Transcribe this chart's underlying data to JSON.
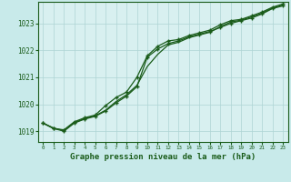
{
  "title": "Graphe pression niveau de la mer (hPa)",
  "background_color": "#c8eaea",
  "plot_bg_color": "#d8f0f0",
  "line_color": "#1a5c1a",
  "grid_color": "#aed4d4",
  "xlim": [
    -0.5,
    23.5
  ],
  "ylim": [
    1018.6,
    1023.8
  ],
  "yticks": [
    1019,
    1020,
    1021,
    1022,
    1023
  ],
  "xticks": [
    0,
    1,
    2,
    3,
    4,
    5,
    6,
    7,
    8,
    9,
    10,
    11,
    12,
    13,
    14,
    15,
    16,
    17,
    18,
    19,
    20,
    21,
    22,
    23
  ],
  "line1_x": [
    0,
    1,
    2,
    3,
    4,
    5,
    6,
    7,
    8,
    9,
    10,
    11,
    12,
    13,
    14,
    15,
    16,
    17,
    18,
    19,
    20,
    21,
    22,
    23
  ],
  "line1_y": [
    1019.3,
    1019.1,
    1019.0,
    1019.3,
    1019.45,
    1019.55,
    1019.75,
    1020.05,
    1020.3,
    1020.65,
    1021.75,
    1022.05,
    1022.25,
    1022.35,
    1022.5,
    1022.6,
    1022.7,
    1022.85,
    1023.0,
    1023.1,
    1023.2,
    1023.35,
    1023.55,
    1023.65
  ],
  "line2_x": [
    0,
    1,
    2,
    3,
    4,
    5,
    6,
    7,
    8,
    9,
    10,
    11,
    12,
    13,
    14,
    15,
    16,
    17,
    18,
    19,
    20,
    21,
    22,
    23
  ],
  "line2_y": [
    1019.3,
    1019.1,
    1019.05,
    1019.35,
    1019.5,
    1019.6,
    1019.95,
    1020.25,
    1020.45,
    1021.0,
    1021.8,
    1022.15,
    1022.35,
    1022.4,
    1022.55,
    1022.65,
    1022.75,
    1022.95,
    1023.1,
    1023.15,
    1023.28,
    1023.42,
    1023.6,
    1023.72
  ],
  "line3_x": [
    0,
    1,
    2,
    3,
    4,
    5,
    6,
    7,
    8,
    9,
    10,
    11,
    12,
    13,
    14,
    15,
    16,
    17,
    18,
    19,
    20,
    21,
    22,
    23
  ],
  "line3_y": [
    1019.3,
    1019.12,
    1019.02,
    1019.32,
    1019.47,
    1019.57,
    1019.78,
    1020.1,
    1020.35,
    1020.7,
    1021.4,
    1021.85,
    1022.2,
    1022.3,
    1022.47,
    1022.57,
    1022.67,
    1022.88,
    1023.05,
    1023.12,
    1023.24,
    1023.38,
    1023.57,
    1023.68
  ]
}
